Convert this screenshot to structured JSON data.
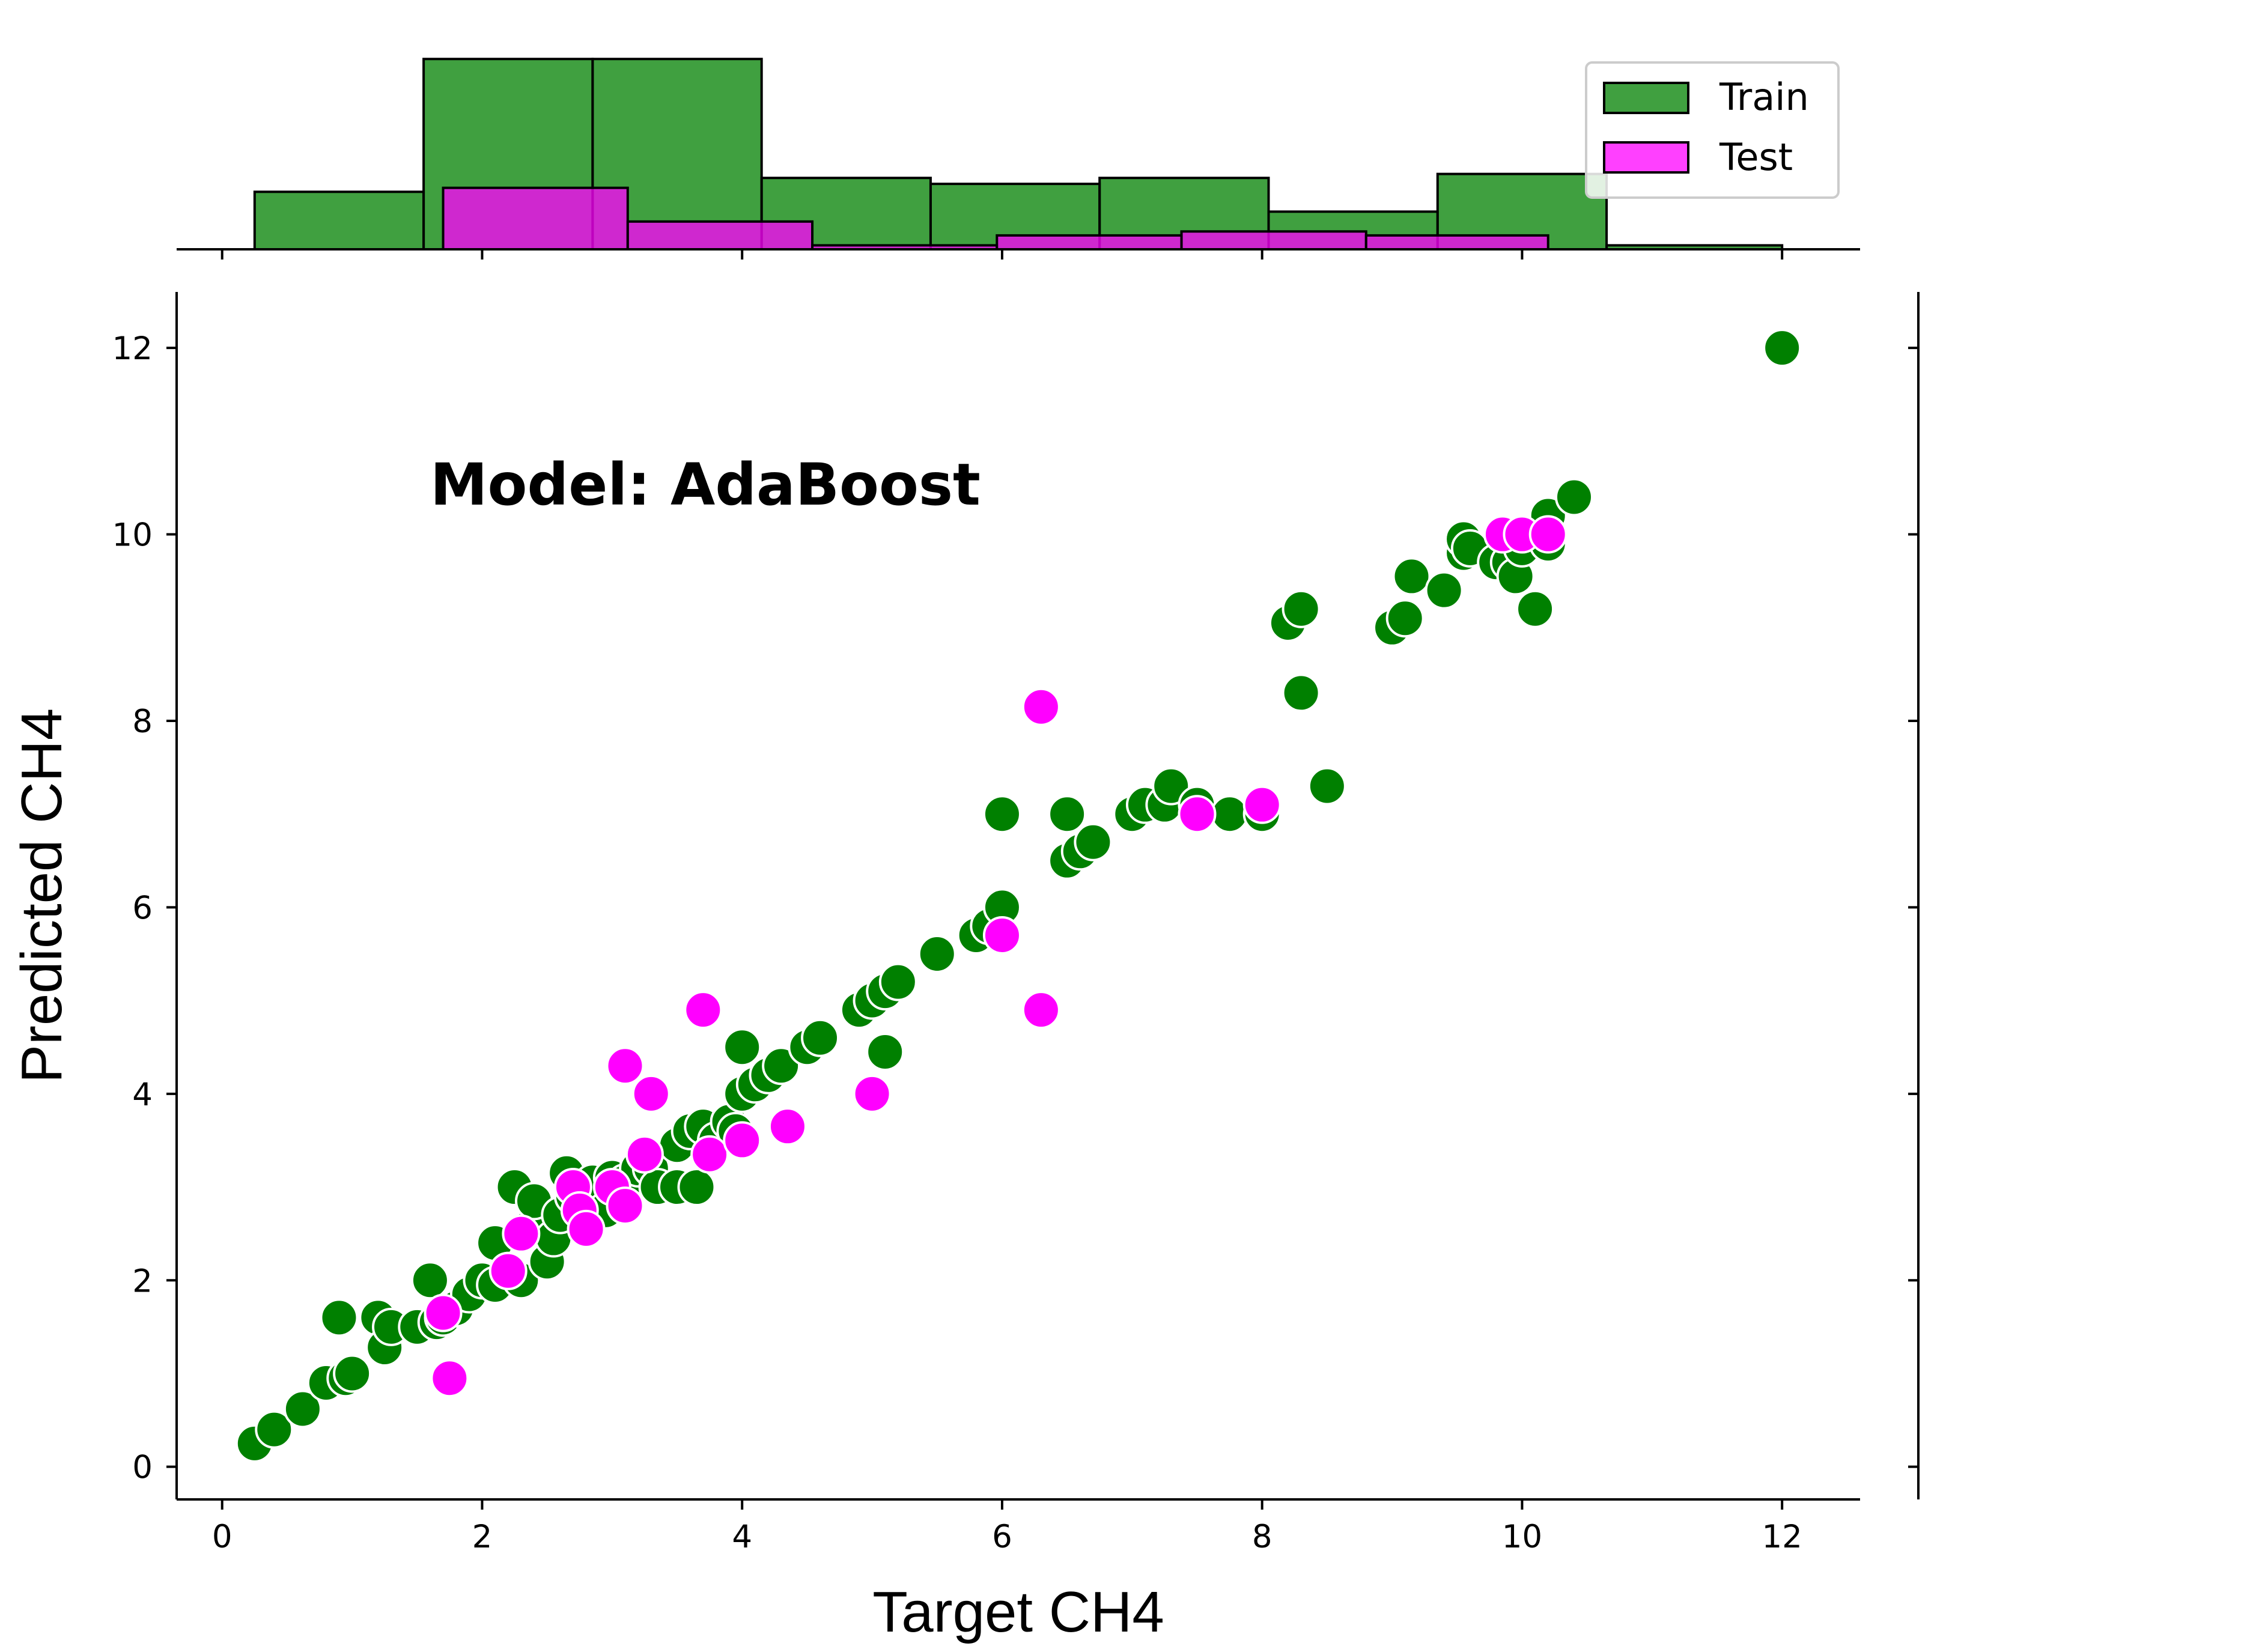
{
  "chart_data": {
    "type": "scatter",
    "xlabel": "Target CH4",
    "ylabel": "Predicted CH4",
    "annotation": "Model: AdaBoost",
    "xlim": [
      -0.35,
      12.6
    ],
    "ylim": [
      -0.35,
      12.6
    ],
    "x_ticks": [
      0,
      2,
      4,
      6,
      8,
      10,
      12
    ],
    "y_ticks": [
      0,
      2,
      4,
      6,
      8,
      10,
      12
    ],
    "legend_position": "top-right",
    "colors": {
      "train": "#008000",
      "test": "#ff00ff",
      "edge": "#ffffff"
    },
    "series": [
      {
        "name": "Train",
        "points": [
          [
            0.25,
            0.25
          ],
          [
            0.4,
            0.4
          ],
          [
            0.62,
            0.62
          ],
          [
            0.8,
            0.9
          ],
          [
            0.9,
            1.6
          ],
          [
            0.95,
            0.95
          ],
          [
            1.0,
            1.0
          ],
          [
            1.2,
            1.6
          ],
          [
            1.25,
            1.28
          ],
          [
            1.3,
            1.5
          ],
          [
            1.5,
            1.5
          ],
          [
            1.6,
            2.0
          ],
          [
            1.65,
            1.55
          ],
          [
            1.7,
            1.6
          ],
          [
            1.8,
            1.7
          ],
          [
            1.9,
            1.85
          ],
          [
            2.0,
            2.0
          ],
          [
            2.1,
            1.95
          ],
          [
            2.1,
            2.4
          ],
          [
            2.2,
            2.1
          ],
          [
            2.25,
            3.0
          ],
          [
            2.3,
            2.0
          ],
          [
            2.35,
            2.55
          ],
          [
            2.4,
            2.85
          ],
          [
            2.5,
            2.2
          ],
          [
            2.55,
            2.45
          ],
          [
            2.6,
            2.7
          ],
          [
            2.65,
            3.15
          ],
          [
            2.7,
            2.9
          ],
          [
            2.8,
            2.85
          ],
          [
            2.85,
            3.05
          ],
          [
            2.95,
            2.75
          ],
          [
            3.0,
            3.1
          ],
          [
            3.1,
            3.05
          ],
          [
            3.2,
            3.2
          ],
          [
            3.3,
            3.2
          ],
          [
            3.35,
            3.0
          ],
          [
            3.5,
            3.45
          ],
          [
            3.5,
            3.0
          ],
          [
            3.6,
            3.6
          ],
          [
            3.65,
            3.0
          ],
          [
            3.7,
            3.65
          ],
          [
            3.8,
            3.5
          ],
          [
            3.9,
            3.7
          ],
          [
            3.95,
            3.6
          ],
          [
            4.0,
            4.0
          ],
          [
            4.0,
            4.5
          ],
          [
            4.1,
            4.1
          ],
          [
            4.2,
            4.2
          ],
          [
            4.3,
            4.3
          ],
          [
            4.5,
            4.5
          ],
          [
            4.6,
            4.6
          ],
          [
            4.9,
            4.9
          ],
          [
            5.0,
            5.0
          ],
          [
            5.1,
            5.1
          ],
          [
            5.1,
            4.45
          ],
          [
            5.2,
            5.2
          ],
          [
            5.5,
            5.5
          ],
          [
            5.8,
            5.7
          ],
          [
            5.9,
            5.8
          ],
          [
            6.0,
            6.0
          ],
          [
            6.0,
            7.0
          ],
          [
            6.5,
            7.0
          ],
          [
            6.5,
            6.5
          ],
          [
            6.6,
            6.6
          ],
          [
            6.7,
            6.7
          ],
          [
            7.0,
            7.0
          ],
          [
            7.1,
            7.1
          ],
          [
            7.25,
            7.1
          ],
          [
            7.3,
            7.3
          ],
          [
            7.5,
            7.1
          ],
          [
            7.75,
            7.0
          ],
          [
            8.0,
            7.0
          ],
          [
            8.2,
            9.05
          ],
          [
            8.3,
            9.2
          ],
          [
            8.3,
            8.3
          ],
          [
            8.5,
            7.3
          ],
          [
            9.0,
            9.0
          ],
          [
            9.1,
            9.1
          ],
          [
            9.15,
            9.55
          ],
          [
            9.4,
            9.4
          ],
          [
            9.55,
            9.8
          ],
          [
            9.55,
            9.95
          ],
          [
            9.6,
            9.85
          ],
          [
            9.8,
            9.7
          ],
          [
            9.9,
            9.7
          ],
          [
            9.95,
            9.55
          ],
          [
            10.0,
            9.85
          ],
          [
            10.1,
            9.2
          ],
          [
            10.2,
            9.9
          ],
          [
            10.2,
            10.2
          ],
          [
            10.4,
            10.4
          ],
          [
            12.0,
            12.0
          ]
        ]
      },
      {
        "name": "Test",
        "points": [
          [
            1.7,
            1.65
          ],
          [
            1.75,
            0.95
          ],
          [
            2.2,
            2.1
          ],
          [
            2.3,
            2.5
          ],
          [
            2.7,
            3.0
          ],
          [
            2.75,
            2.75
          ],
          [
            2.8,
            2.55
          ],
          [
            3.0,
            3.0
          ],
          [
            3.1,
            2.8
          ],
          [
            3.1,
            4.3
          ],
          [
            3.25,
            3.35
          ],
          [
            3.3,
            4.0
          ],
          [
            3.7,
            4.9
          ],
          [
            3.75,
            3.35
          ],
          [
            4.0,
            3.5
          ],
          [
            4.35,
            3.65
          ],
          [
            5.0,
            4.0
          ],
          [
            6.0,
            5.7
          ],
          [
            6.3,
            4.9
          ],
          [
            6.3,
            8.15
          ],
          [
            7.5,
            7.0
          ],
          [
            8.0,
            7.1
          ],
          [
            9.85,
            10.0
          ],
          [
            10.0,
            10.0
          ],
          [
            10.2,
            10.0
          ]
        ]
      }
    ],
    "marginal_histogram": {
      "train": [
        {
          "x0": 0.25,
          "x1": 1.55,
          "height": 0.29
        },
        {
          "x0": 1.55,
          "x1": 2.85,
          "height": 0.96
        },
        {
          "x0": 2.85,
          "x1": 4.15,
          "height": 0.96
        },
        {
          "x0": 4.15,
          "x1": 5.45,
          "height": 0.36
        },
        {
          "x0": 5.45,
          "x1": 6.75,
          "height": 0.33
        },
        {
          "x0": 6.75,
          "x1": 8.05,
          "height": 0.36
        },
        {
          "x0": 8.05,
          "x1": 9.35,
          "height": 0.19
        },
        {
          "x0": 9.35,
          "x1": 10.65,
          "height": 0.38
        },
        {
          "x0": 10.65,
          "x1": 12.0,
          "height": 0.02
        }
      ],
      "test": [
        {
          "x0": 1.7,
          "x1": 3.12,
          "height": 0.31
        },
        {
          "x0": 3.12,
          "x1": 4.54,
          "height": 0.14
        },
        {
          "x0": 4.54,
          "x1": 5.96,
          "height": 0.02
        },
        {
          "x0": 5.96,
          "x1": 7.38,
          "height": 0.07
        },
        {
          "x0": 7.38,
          "x1": 8.8,
          "height": 0.09
        },
        {
          "x0": 8.8,
          "x1": 10.2,
          "height": 0.07
        }
      ]
    }
  }
}
